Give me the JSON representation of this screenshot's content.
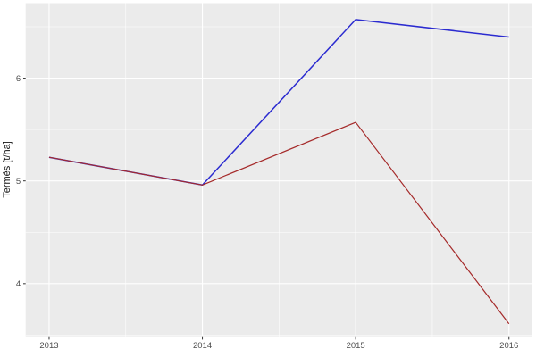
{
  "chart_data": {
    "type": "line",
    "title": "",
    "xlabel": "",
    "ylabel": "Termés [t/ha]",
    "x": [
      2013,
      2014,
      2015,
      2016
    ],
    "series": [
      {
        "name": "blue-series",
        "color": "#2b2bd0",
        "stroke_width": 1.5,
        "values": [
          5.23,
          4.96,
          6.57,
          6.4
        ]
      },
      {
        "name": "red-series",
        "color": "#a52a2a",
        "stroke_width": 1.2,
        "values": [
          5.23,
          4.96,
          5.57,
          3.61
        ]
      }
    ],
    "xlim": [
      2012.847,
      2016.153
    ],
    "ylim": [
      3.48,
      6.73
    ],
    "x_ticks": [
      2013,
      2014,
      2015,
      2016
    ],
    "x_tick_labels": [
      "2013",
      "2014",
      "2015",
      "2016"
    ],
    "y_ticks": [
      4,
      5,
      6
    ],
    "y_tick_labels": [
      "4",
      "5",
      "6"
    ],
    "x_minor_ticks": [
      2013.5,
      2014.5,
      2015.5
    ],
    "y_minor_ticks": [
      3.5,
      4.5,
      5.5,
      6.5
    ],
    "grid": "major+minor",
    "legend": "none",
    "style": {
      "panel_bg": "#ebebeb",
      "grid_color": "#ffffff",
      "outer_bg": "#ffffff",
      "tick_label_color": "#4d4d4d",
      "axis_title_color": "#111111",
      "tick_mark_color": "#333333"
    }
  }
}
